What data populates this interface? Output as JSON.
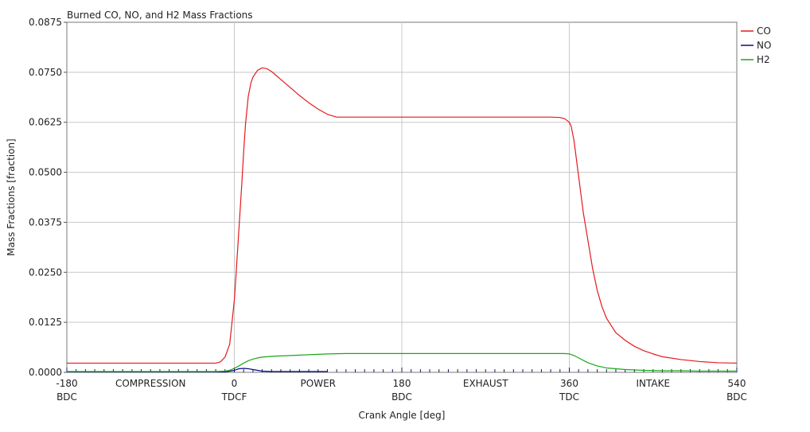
{
  "chart_data": {
    "type": "line",
    "title": "Burned CO, NO, and H2 Mass Fractions",
    "xlabel": "Crank Angle [deg]",
    "ylabel": "Mass Fractions [fraction]",
    "xlim": [
      -180,
      540
    ],
    "ylim": [
      0,
      0.0875
    ],
    "grid": true,
    "legend_position": "right",
    "x_ticks": [
      -180,
      0,
      180,
      360,
      540
    ],
    "y_ticks": [
      0,
      0.0125,
      0.025,
      0.0375,
      0.05,
      0.0625,
      0.075,
      0.0875
    ],
    "y_tick_labels": [
      "0.0000",
      "0.0125",
      "0.0250",
      "0.0375",
      "0.0500",
      "0.0625",
      "0.0750",
      "0.0875"
    ],
    "x_tick_labels": [
      {
        "x": -180,
        "top": "-180",
        "bottom": "BDC"
      },
      {
        "x": 0,
        "top": "0",
        "bottom": "TDCF"
      },
      {
        "x": 180,
        "top": "180",
        "bottom": "BDC"
      },
      {
        "x": 360,
        "top": "360",
        "bottom": "TDC"
      },
      {
        "x": 540,
        "top": "540",
        "bottom": "BDC"
      }
    ],
    "phase_labels": [
      {
        "x": -90,
        "text": "COMPRESSION"
      },
      {
        "x": 90,
        "text": "POWER"
      },
      {
        "x": 270,
        "text": "EXHAUST"
      },
      {
        "x": 450,
        "text": "INTAKE"
      }
    ],
    "series": [
      {
        "name": "CO",
        "color": "#e41a1c",
        "x": [
          -180,
          -20,
          -15,
          -10,
          -5,
          0,
          2,
          5,
          8,
          10,
          12,
          15,
          18,
          20,
          25,
          30,
          35,
          40,
          45,
          50,
          60,
          70,
          80,
          90,
          100,
          110,
          120,
          150,
          200,
          250,
          300,
          340,
          350,
          355,
          360,
          362,
          365,
          370,
          375,
          380,
          385,
          390,
          395,
          400,
          410,
          420,
          430,
          440,
          450,
          460,
          480,
          500,
          520,
          540
        ],
        "y": [
          0.0023,
          0.0023,
          0.0026,
          0.0038,
          0.007,
          0.018,
          0.025,
          0.036,
          0.047,
          0.055,
          0.062,
          0.069,
          0.0725,
          0.0738,
          0.0755,
          0.0761,
          0.0759,
          0.0752,
          0.0742,
          0.0732,
          0.0712,
          0.0692,
          0.0674,
          0.0658,
          0.0645,
          0.0638,
          0.0638,
          0.0638,
          0.0638,
          0.0638,
          0.0638,
          0.0638,
          0.0637,
          0.0634,
          0.0625,
          0.0615,
          0.058,
          0.049,
          0.04,
          0.033,
          0.026,
          0.0205,
          0.0165,
          0.0135,
          0.0099,
          0.008,
          0.0065,
          0.0054,
          0.0046,
          0.0039,
          0.0032,
          0.0027,
          0.0024,
          0.0023
        ]
      },
      {
        "name": "NO",
        "color": "#0a0a80",
        "x": [
          -180,
          -10,
          0,
          5,
          10,
          15,
          20,
          25,
          30,
          40,
          60,
          80,
          100
        ],
        "y": [
          0.0001,
          0.0001,
          0.0005,
          0.0009,
          0.001,
          0.0009,
          0.0007,
          0.0005,
          0.0003,
          0.0002,
          0.0002,
          0.0002,
          0.0002
        ]
      },
      {
        "name": "H2",
        "color": "#1aa81a",
        "x": [
          -180,
          -20,
          -10,
          -5,
          0,
          5,
          10,
          15,
          20,
          25,
          30,
          40,
          50,
          60,
          80,
          100,
          120,
          150,
          200,
          250,
          300,
          340,
          355,
          360,
          365,
          370,
          380,
          390,
          400,
          420,
          440,
          460,
          480,
          500,
          540
        ],
        "y": [
          0.0002,
          0.0002,
          0.0003,
          0.0005,
          0.001,
          0.0016,
          0.0023,
          0.0029,
          0.0033,
          0.0036,
          0.0038,
          0.004,
          0.0041,
          0.0042,
          0.0044,
          0.0046,
          0.0047,
          0.0047,
          0.0047,
          0.0047,
          0.0047,
          0.0047,
          0.0047,
          0.0046,
          0.0042,
          0.0036,
          0.0024,
          0.0016,
          0.0011,
          0.0007,
          0.0005,
          0.0004,
          0.0004,
          0.0003,
          0.0003
        ]
      }
    ]
  }
}
